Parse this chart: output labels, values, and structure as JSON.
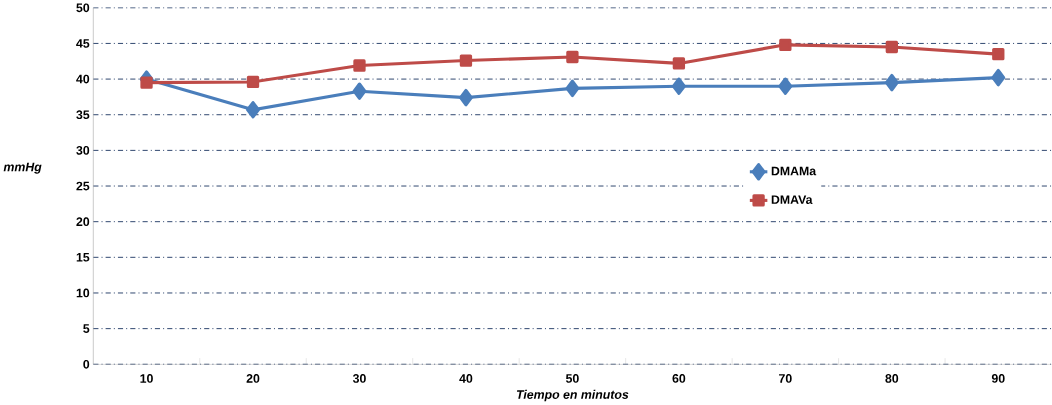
{
  "chart_data": {
    "type": "line",
    "xlabel": "Tiempo en minutos",
    "ylabel": "mmHg",
    "categories": [
      "10",
      "20",
      "30",
      "40",
      "50",
      "60",
      "70",
      "80",
      "90"
    ],
    "ylim": [
      0,
      50
    ],
    "yticks": [
      0,
      5,
      10,
      15,
      20,
      25,
      30,
      35,
      40,
      45,
      50
    ],
    "grid": "y",
    "legend": "right",
    "series": [
      {
        "name": "DMAMa",
        "color": "#4a7ebb",
        "marker": "diamond",
        "values": [
          40.0,
          35.7,
          38.3,
          37.4,
          38.7,
          39.0,
          39.0,
          39.5,
          40.2
        ]
      },
      {
        "name": "DMAVa",
        "color": "#be4b48",
        "marker": "square",
        "values": [
          39.5,
          39.6,
          41.9,
          42.6,
          43.1,
          42.2,
          44.8,
          44.5,
          43.5
        ]
      }
    ]
  }
}
